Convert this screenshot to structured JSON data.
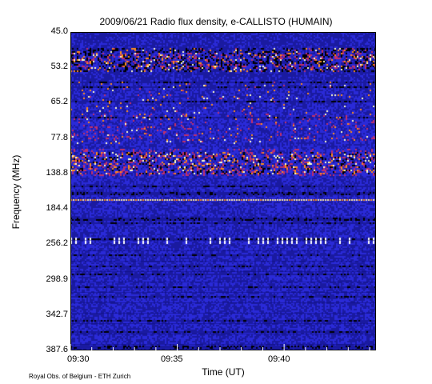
{
  "chart_data": {
    "type": "heatmap",
    "title": "2009/06/21  Radio flux density, e-CALLISTO (HUMAIN)",
    "xlabel": "Time (UT)",
    "ylabel": "Frequency (MHz)",
    "x_ticks": [
      "09:30",
      "09:35",
      "09:40"
    ],
    "y_ticks": [
      "45.0",
      "53.2",
      "65.2",
      "77.8",
      "138.8",
      "184.4",
      "256.2",
      "298.9",
      "342.7",
      "387.6"
    ],
    "colormap": [
      "#000000",
      "#1a1aa0",
      "#2a2ad8",
      "#c0306a",
      "#ff8c1a",
      "#ffffc8"
    ],
    "features": [
      {
        "band": "53.2",
        "description": "intense interference band"
      },
      {
        "band": "138.8",
        "description": "bright broadband line"
      },
      {
        "band": "184.4",
        "description": "thin dotted line"
      },
      {
        "band": "256.2",
        "description": "intermittent white dashes"
      }
    ]
  },
  "credit": "Royal Obs. of Belgium - ETH Zurich"
}
